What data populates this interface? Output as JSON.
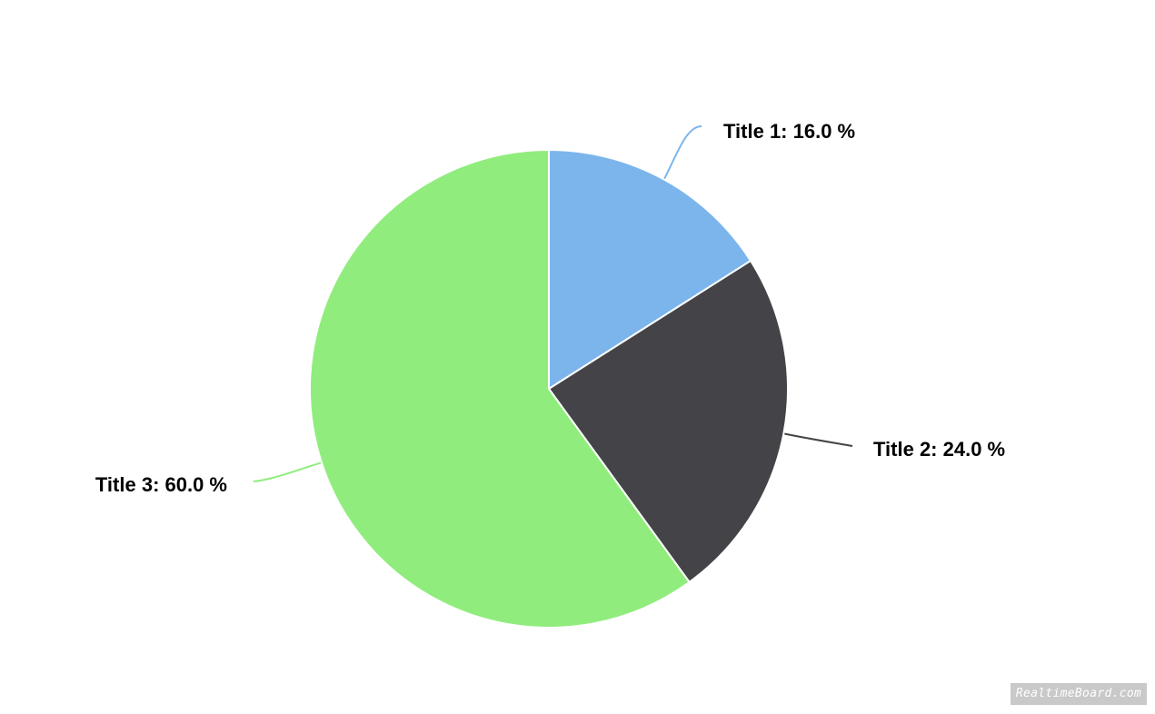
{
  "chart_data": {
    "type": "pie",
    "slices": [
      {
        "label": "Title 1",
        "value": 16.0,
        "display": "Title 1: 16.0 %",
        "color": "#7cb5ec"
      },
      {
        "label": "Title 2",
        "value": 24.0,
        "display": "Title 2: 24.0 %",
        "color": "#434348"
      },
      {
        "label": "Title 3",
        "value": 60.0,
        "display": "Title 3: 60.0 %",
        "color": "#90ed7d"
      }
    ],
    "legend": "none",
    "start_angle": "12 o'clock",
    "direction": "clockwise"
  },
  "watermark": {
    "text": "RealtimeBoard.com"
  }
}
